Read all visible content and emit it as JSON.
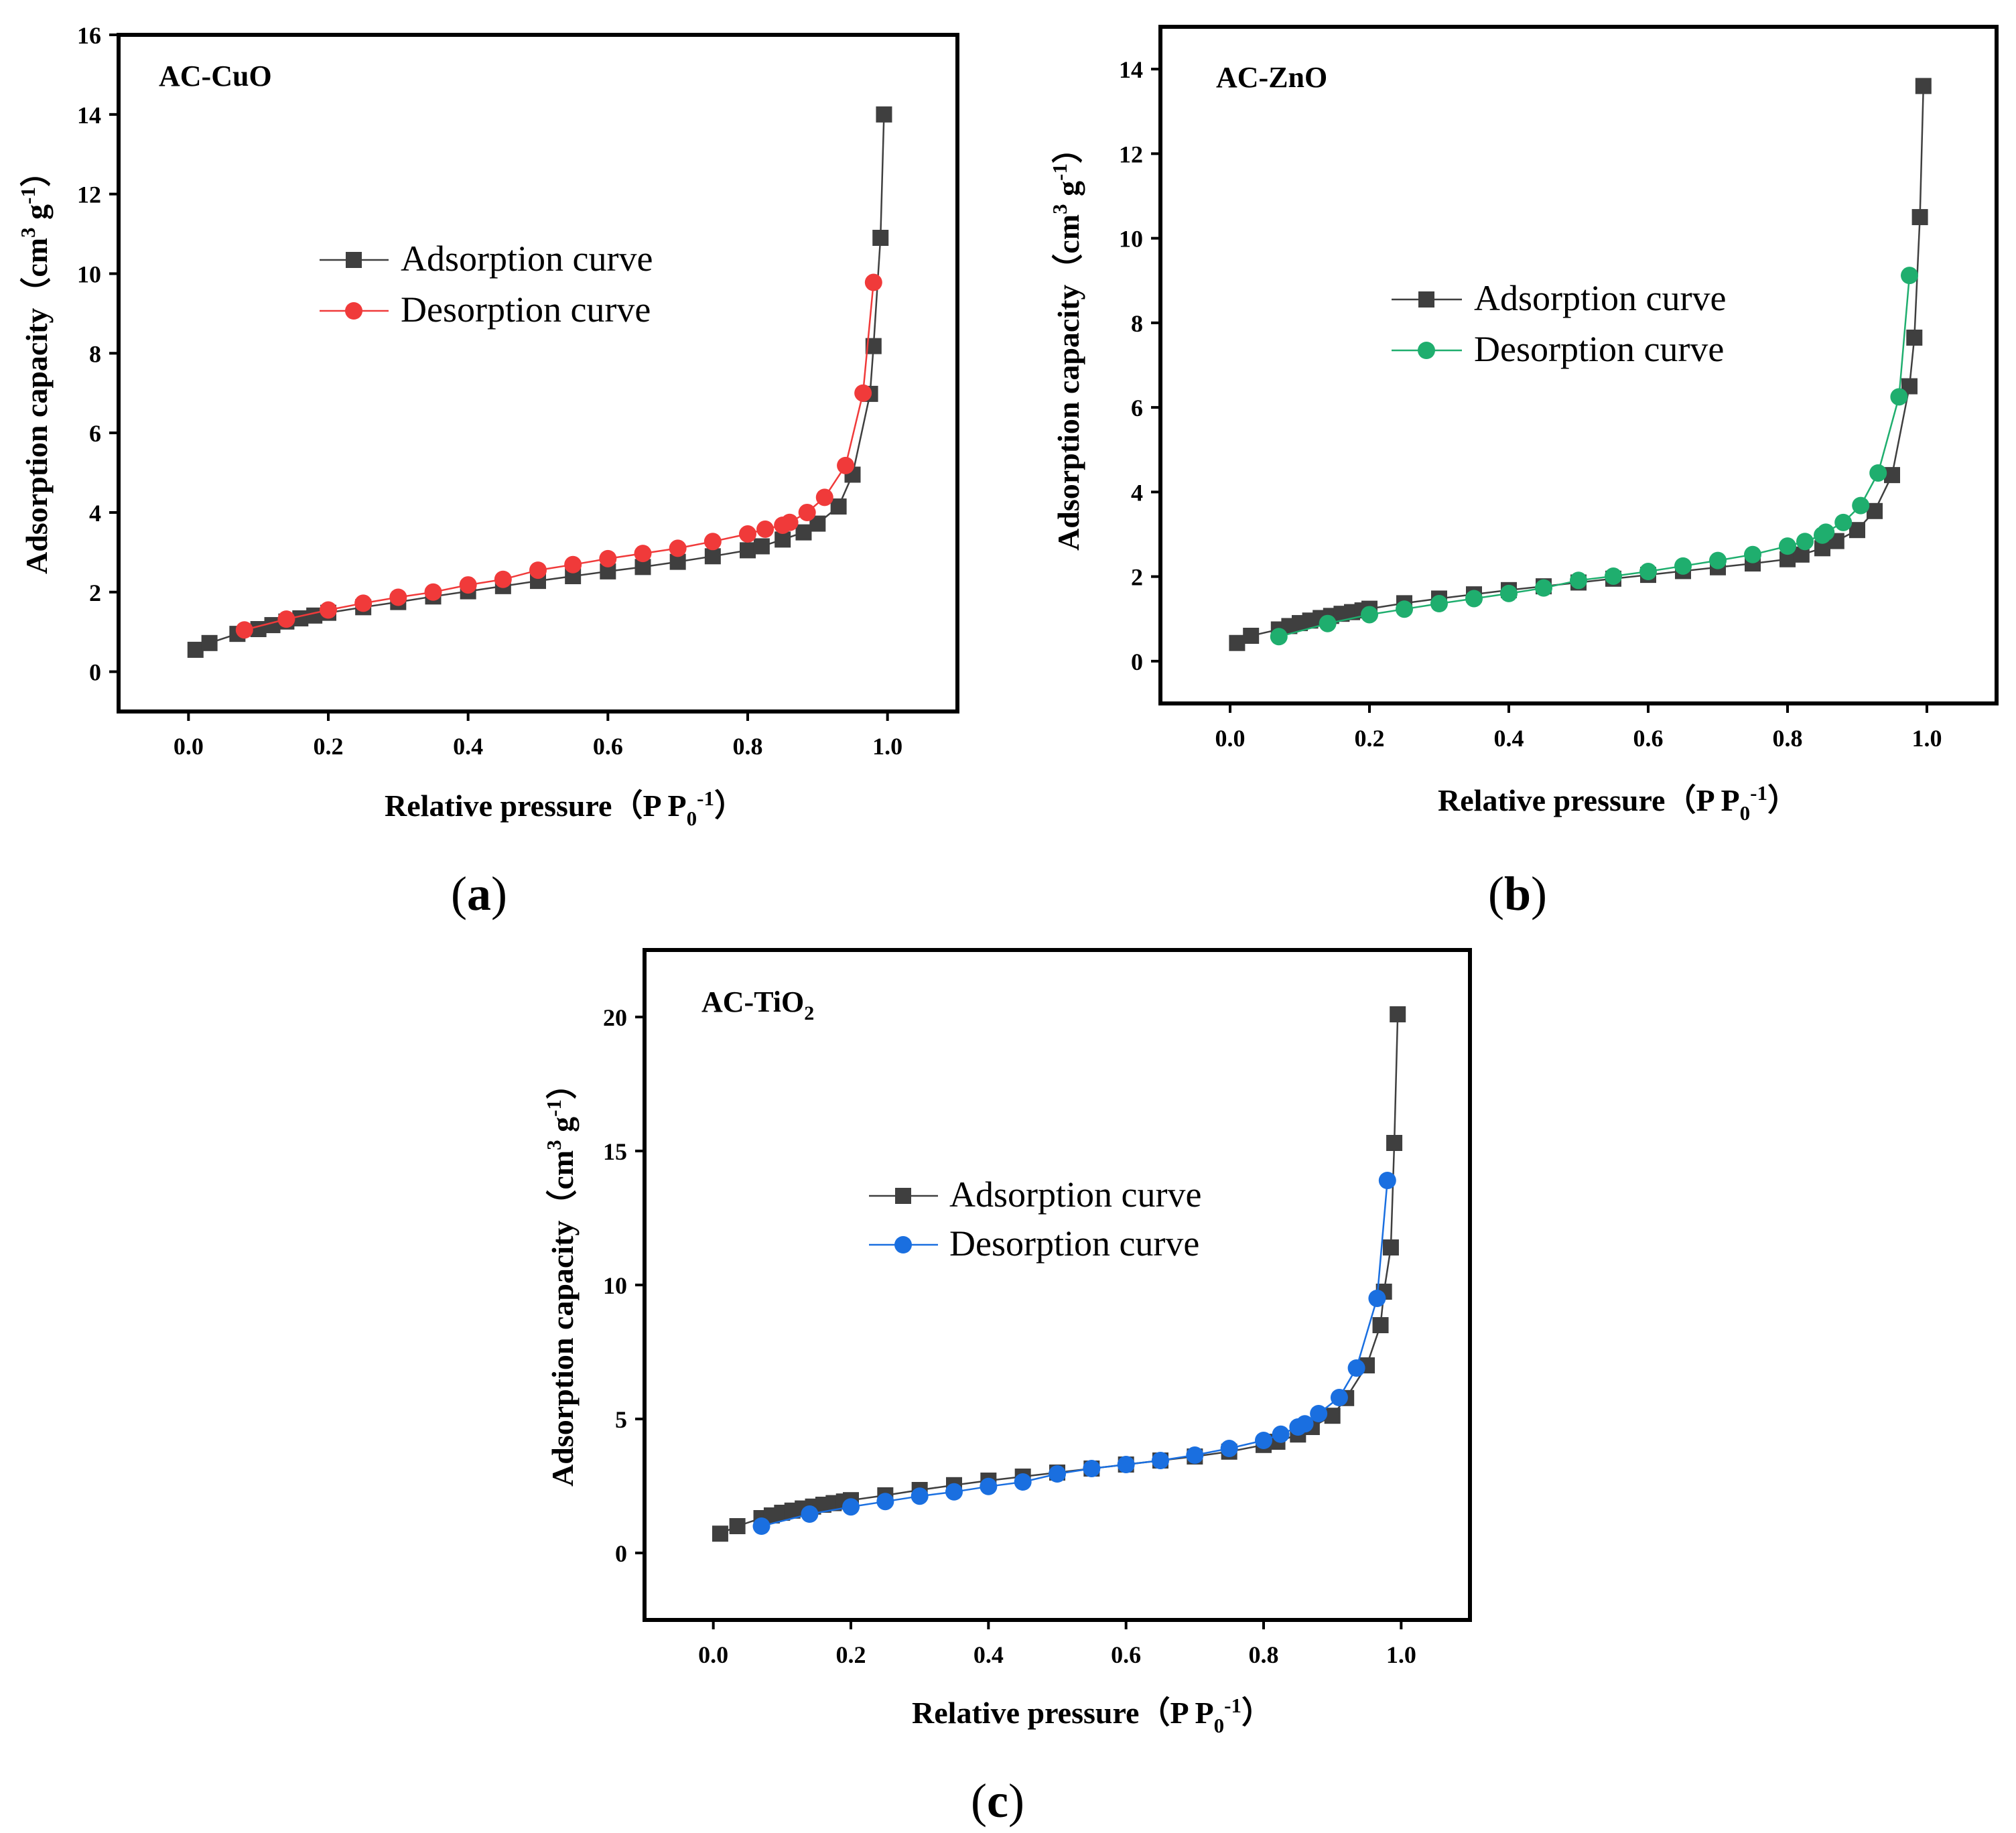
{
  "chart_data": [
    {
      "type": "line",
      "panel_label": "(a)",
      "title": "AC-CuO",
      "xlabel": "Relative pressure（P P0-1）",
      "ylabel": "Adsorption capacity（cm3 g-1）",
      "xlim": [
        -0.1,
        1.1
      ],
      "ylim": [
        -1,
        16
      ],
      "xticks": [
        0.0,
        0.2,
        0.4,
        0.6,
        0.8,
        1.0
      ],
      "xtick_labels": [
        "0.0",
        "0.2",
        "0.4",
        "0.6",
        "0.8",
        "1.0"
      ],
      "yticks": [
        0,
        2,
        4,
        6,
        8,
        10,
        12,
        14,
        16
      ],
      "ytick_labels": [
        "0",
        "2",
        "4",
        "6",
        "8",
        "10",
        "12",
        "14",
        "16"
      ],
      "legend_position": "upper-left",
      "series": [
        {
          "name": "Adsorption curve",
          "marker": "square",
          "color": "#3f3f3f",
          "line_color": "#3f3f3f",
          "x": [
            0.01,
            0.03,
            0.07,
            0.1,
            0.12,
            0.14,
            0.16,
            0.18,
            0.2,
            0.25,
            0.3,
            0.35,
            0.4,
            0.45,
            0.5,
            0.55,
            0.6,
            0.65,
            0.7,
            0.75,
            0.8,
            0.82,
            0.85,
            0.88,
            0.9,
            0.93,
            0.95,
            0.975,
            0.98,
            0.99,
            0.995
          ],
          "y": [
            0.55,
            0.72,
            0.95,
            1.07,
            1.17,
            1.26,
            1.34,
            1.41,
            1.48,
            1.62,
            1.75,
            1.89,
            2.02,
            2.15,
            2.28,
            2.4,
            2.52,
            2.63,
            2.76,
            2.9,
            3.05,
            3.15,
            3.32,
            3.5,
            3.72,
            4.15,
            4.95,
            6.98,
            8.18,
            10.9,
            14.0
          ]
        },
        {
          "name": "Desorption curve",
          "marker": "circle",
          "color": "#f03a3a",
          "line_color": "#f03a3a",
          "x": [
            0.98,
            0.965,
            0.94,
            0.91,
            0.885,
            0.86,
            0.85,
            0.825,
            0.8,
            0.75,
            0.7,
            0.65,
            0.6,
            0.55,
            0.5,
            0.45,
            0.4,
            0.35,
            0.3,
            0.25,
            0.2,
            0.14,
            0.08
          ],
          "y": [
            9.78,
            7.0,
            5.18,
            4.38,
            4.0,
            3.75,
            3.68,
            3.58,
            3.46,
            3.27,
            3.1,
            2.97,
            2.84,
            2.69,
            2.55,
            2.32,
            2.18,
            2.0,
            1.87,
            1.72,
            1.55,
            1.32,
            1.05
          ]
        }
      ]
    },
    {
      "type": "line",
      "panel_label": "(b)",
      "title": "AC-ZnO",
      "xlabel": "Relative pressure（P P0-1）",
      "ylabel": "Adsorption capacity（cm3 g-1）",
      "xlim": [
        -0.1,
        1.1
      ],
      "ylim": [
        -1,
        15
      ],
      "xticks": [
        0.0,
        0.2,
        0.4,
        0.6,
        0.8,
        1.0
      ],
      "xtick_labels": [
        "0.0",
        "0.2",
        "0.4",
        "0.6",
        "0.8",
        "1.0"
      ],
      "yticks": [
        0,
        2,
        4,
        6,
        8,
        10,
        12,
        14
      ],
      "ytick_labels": [
        "0",
        "2",
        "4",
        "6",
        "8",
        "10",
        "12",
        "14"
      ],
      "legend_position": "center-right",
      "series": [
        {
          "name": "Adsorption curve",
          "marker": "square",
          "color": "#3f3f3f",
          "line_color": "#3f3f3f",
          "x": [
            0.01,
            0.03,
            0.07,
            0.085,
            0.1,
            0.115,
            0.13,
            0.145,
            0.16,
            0.175,
            0.19,
            0.2,
            0.25,
            0.3,
            0.35,
            0.4,
            0.45,
            0.5,
            0.55,
            0.6,
            0.65,
            0.7,
            0.75,
            0.8,
            0.82,
            0.85,
            0.87,
            0.9,
            0.925,
            0.95,
            0.975,
            0.982,
            0.99,
            0.995
          ],
          "y": [
            0.43,
            0.6,
            0.75,
            0.83,
            0.9,
            0.96,
            1.02,
            1.07,
            1.12,
            1.16,
            1.2,
            1.24,
            1.37,
            1.48,
            1.58,
            1.68,
            1.77,
            1.86,
            1.95,
            2.04,
            2.13,
            2.22,
            2.31,
            2.41,
            2.52,
            2.67,
            2.84,
            3.1,
            3.55,
            4.4,
            6.5,
            7.65,
            10.5,
            13.6
          ]
        },
        {
          "name": "Desorption curve",
          "marker": "circle",
          "color": "#1fae6e",
          "line_color": "#1fae6e",
          "x": [
            0.975,
            0.96,
            0.93,
            0.905,
            0.88,
            0.855,
            0.85,
            0.825,
            0.8,
            0.75,
            0.7,
            0.65,
            0.6,
            0.55,
            0.5,
            0.45,
            0.4,
            0.35,
            0.3,
            0.25,
            0.2,
            0.14,
            0.07
          ],
          "y": [
            9.12,
            6.25,
            4.45,
            3.68,
            3.28,
            3.05,
            2.98,
            2.83,
            2.72,
            2.52,
            2.38,
            2.25,
            2.12,
            2.01,
            1.91,
            1.73,
            1.6,
            1.48,
            1.36,
            1.23,
            1.1,
            0.89,
            0.58
          ]
        }
      ]
    },
    {
      "type": "line",
      "panel_label": "(c)",
      "title": "AC-TiO2",
      "xlabel": "Relative pressure（P P0-1）",
      "ylabel": "Adsorption capacity（cm3 g-1）",
      "xlim": [
        -0.1,
        1.1
      ],
      "ylim": [
        -2.5,
        22.5
      ],
      "xticks": [
        0.0,
        0.2,
        0.4,
        0.6,
        0.8,
        1.0
      ],
      "xtick_labels": [
        "0.0",
        "0.2",
        "0.4",
        "0.6",
        "0.8",
        "1.0"
      ],
      "yticks": [
        0,
        5,
        10,
        15,
        20
      ],
      "ytick_labels": [
        "0",
        "5",
        "10",
        "15",
        "20"
      ],
      "legend_position": "center",
      "series": [
        {
          "name": "Adsorption curve",
          "marker": "square",
          "color": "#3f3f3f",
          "line_color": "#3f3f3f",
          "x": [
            0.01,
            0.035,
            0.07,
            0.085,
            0.1,
            0.115,
            0.13,
            0.145,
            0.16,
            0.175,
            0.19,
            0.2,
            0.25,
            0.3,
            0.35,
            0.4,
            0.45,
            0.5,
            0.55,
            0.6,
            0.65,
            0.7,
            0.75,
            0.8,
            0.82,
            0.85,
            0.87,
            0.9,
            0.92,
            0.95,
            0.97,
            0.975,
            0.985,
            0.99,
            0.995
          ],
          "y": [
            0.72,
            1.0,
            1.3,
            1.4,
            1.5,
            1.58,
            1.66,
            1.73,
            1.8,
            1.86,
            1.92,
            1.97,
            2.15,
            2.35,
            2.53,
            2.7,
            2.85,
            3.0,
            3.15,
            3.3,
            3.45,
            3.6,
            3.78,
            4.03,
            4.15,
            4.42,
            4.7,
            5.12,
            5.78,
            7.0,
            8.5,
            9.75,
            11.4,
            15.3,
            20.1
          ]
        },
        {
          "name": "Desorption curve",
          "marker": "circle",
          "color": "#1a6fe0",
          "line_color": "#1a6fe0",
          "x": [
            0.98,
            0.965,
            0.935,
            0.91,
            0.88,
            0.86,
            0.85,
            0.825,
            0.8,
            0.75,
            0.7,
            0.65,
            0.6,
            0.55,
            0.5,
            0.45,
            0.4,
            0.35,
            0.3,
            0.25,
            0.2,
            0.14,
            0.07
          ],
          "y": [
            13.9,
            9.5,
            6.9,
            5.8,
            5.2,
            4.82,
            4.7,
            4.43,
            4.2,
            3.9,
            3.65,
            3.45,
            3.3,
            3.15,
            2.95,
            2.65,
            2.48,
            2.28,
            2.12,
            1.92,
            1.72,
            1.45,
            1.0
          ]
        }
      ]
    }
  ]
}
